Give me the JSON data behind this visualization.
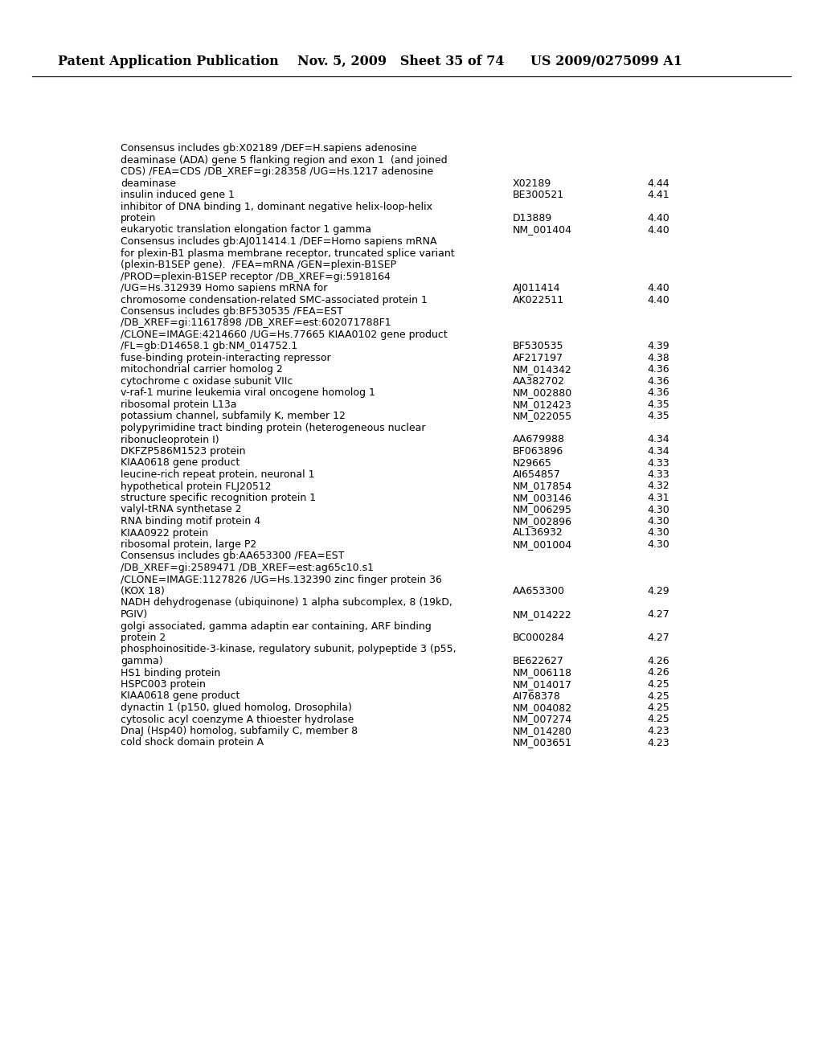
{
  "background_color": "#ffffff",
  "header_left": "Patent Application Publication",
  "header_center": "Nov. 5, 2009   Sheet 35 of 74",
  "header_right": "US 2009/0275099 A1",
  "header_fontsize": 11.5,
  "body_fontsize": 9.0,
  "entries": [
    {
      "description": "Consensus includes gb:X02189 /DEF=H.sapiens adenosine\ndeaminase (ADA) gene 5 flanking region and exon 1  (and joined\nCDS) /FEA=CDS /DB_XREF=gi:28358 /UG=Hs.1217 adenosine\ndeaminase",
      "accession": "X02189",
      "value": "4.44"
    },
    {
      "description": "insulin induced gene 1",
      "accession": "BE300521",
      "value": "4.41"
    },
    {
      "description": "inhibitor of DNA binding 1, dominant negative helix-loop-helix\nprotein",
      "accession": "D13889",
      "value": "4.40"
    },
    {
      "description": "eukaryotic translation elongation factor 1 gamma",
      "accession": "NM_001404",
      "value": "4.40"
    },
    {
      "description": "Consensus includes gb:AJ011414.1 /DEF=Homo sapiens mRNA\nfor plexin-B1 plasma membrane receptor, truncated splice variant\n(plexin-B1SEP gene).  /FEA=mRNA /GEN=plexin-B1SEP\n/PROD=plexin-B1SEP receptor /DB_XREF=gi:5918164\n/UG=Hs.312939 Homo sapiens mRNA for",
      "accession": "AJ011414",
      "value": "4.40"
    },
    {
      "description": "chromosome condensation-related SMC-associated protein 1",
      "accession": "AK022511",
      "value": "4.40"
    },
    {
      "description": "Consensus includes gb:BF530535 /FEA=EST\n/DB_XREF=gi:11617898 /DB_XREF=est:602071788F1\n/CLONE=IMAGE:4214660 /UG=Hs.77665 KIAA0102 gene product\n/FL=gb:D14658.1 gb:NM_014752.1",
      "accession": "BF530535",
      "value": "4.39"
    },
    {
      "description": "fuse-binding protein-interacting repressor",
      "accession": "AF217197",
      "value": "4.38"
    },
    {
      "description": "mitochondrial carrier homolog 2",
      "accession": "NM_014342",
      "value": "4.36"
    },
    {
      "description": "cytochrome c oxidase subunit VIIc",
      "accession": "AA382702",
      "value": "4.36"
    },
    {
      "description": "v-raf-1 murine leukemia viral oncogene homolog 1",
      "accession": "NM_002880",
      "value": "4.36"
    },
    {
      "description": "ribosomal protein L13a",
      "accession": "NM_012423",
      "value": "4.35"
    },
    {
      "description": "potassium channel, subfamily K, member 12",
      "accession": "NM_022055",
      "value": "4.35"
    },
    {
      "description": "polypyrimidine tract binding protein (heterogeneous nuclear\nribonucleoprotein I)",
      "accession": "AA679988",
      "value": "4.34"
    },
    {
      "description": "DKFZP586M1523 protein",
      "accession": "BF063896",
      "value": "4.34"
    },
    {
      "description": "KIAA0618 gene product",
      "accession": "N29665",
      "value": "4.33"
    },
    {
      "description": "leucine-rich repeat protein, neuronal 1",
      "accession": "AI654857",
      "value": "4.33"
    },
    {
      "description": "hypothetical protein FLJ20512",
      "accession": "NM_017854",
      "value": "4.32"
    },
    {
      "description": "structure specific recognition protein 1",
      "accession": "NM_003146",
      "value": "4.31"
    },
    {
      "description": "valyl-tRNA synthetase 2",
      "accession": "NM_006295",
      "value": "4.30"
    },
    {
      "description": "RNA binding motif protein 4",
      "accession": "NM_002896",
      "value": "4.30"
    },
    {
      "description": "KIAA0922 protein",
      "accession": "AL136932",
      "value": "4.30"
    },
    {
      "description": "ribosomal protein, large P2",
      "accession": "NM_001004",
      "value": "4.30"
    },
    {
      "description": "Consensus includes gb:AA653300 /FEA=EST\n/DB_XREF=gi:2589471 /DB_XREF=est:ag65c10.s1\n/CLONE=IMAGE:1127826 /UG=Hs.132390 zinc finger protein 36\n(KOX 18)",
      "accession": "AA653300",
      "value": "4.29"
    },
    {
      "description": "NADH dehydrogenase (ubiquinone) 1 alpha subcomplex, 8 (19kD,\nPGIV)",
      "accession": "NM_014222",
      "value": "4.27"
    },
    {
      "description": "golgi associated, gamma adaptin ear containing, ARF binding\nprotein 2",
      "accession": "BC000284",
      "value": "4.27"
    },
    {
      "description": "phosphoinositide-3-kinase, regulatory subunit, polypeptide 3 (p55,\ngamma)",
      "accession": "BE622627",
      "value": "4.26"
    },
    {
      "description": "HS1 binding protein",
      "accession": "NM_006118",
      "value": "4.26"
    },
    {
      "description": "HSPC003 protein",
      "accession": "NM_014017",
      "value": "4.25"
    },
    {
      "description": "KIAA0618 gene product",
      "accession": "AI768378",
      "value": "4.25"
    },
    {
      "description": "dynactin 1 (p150, glued homolog, Drosophila)",
      "accession": "NM_004082",
      "value": "4.25"
    },
    {
      "description": "cytosolic acyl coenzyme A thioester hydrolase",
      "accession": "NM_007274",
      "value": "4.25"
    },
    {
      "description": "DnaJ (Hsp40) homolog, subfamily C, member 8",
      "accession": "NM_014280",
      "value": "4.23"
    },
    {
      "description": "cold shock domain protein A",
      "accession": "NM_003651",
      "value": "4.23"
    }
  ]
}
